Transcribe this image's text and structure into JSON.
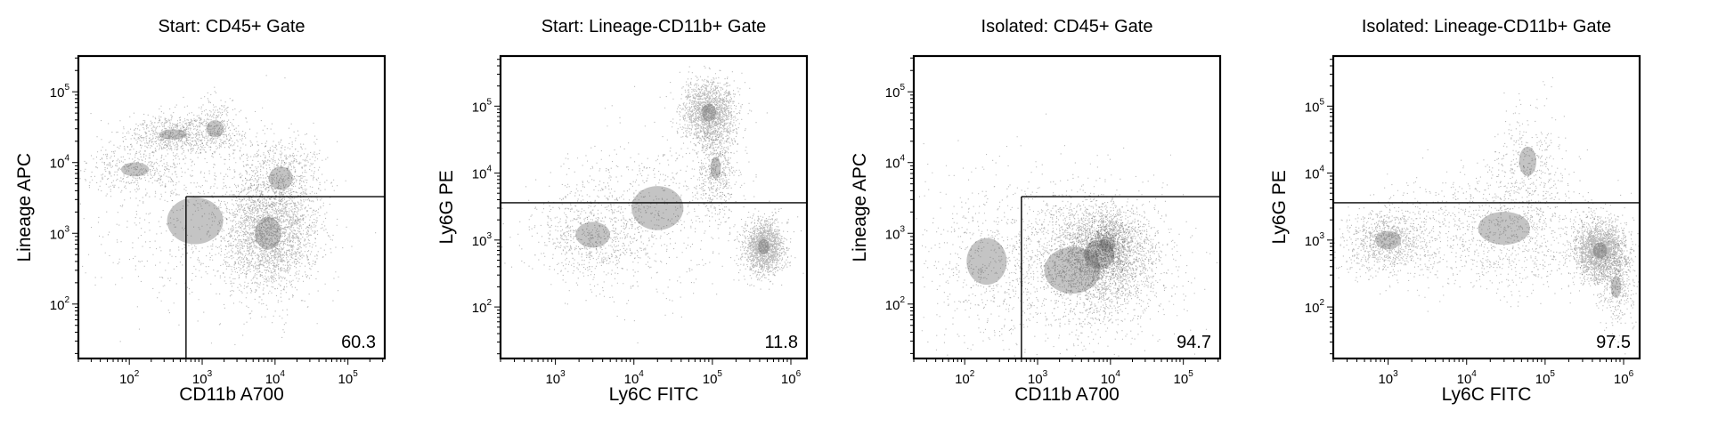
{
  "chart_data": [
    {
      "type": "scatter",
      "title": "Start: CD45+ Gate",
      "xlabel": "CD11b A700",
      "ylabel": "Lineage APC",
      "xscale": "log",
      "yscale": "log",
      "xlim": [
        20,
        320000
      ],
      "ylim": [
        17,
        320000
      ],
      "xticks": [
        {
          "value": 100,
          "base": "10",
          "exp": "2"
        },
        {
          "value": 1000,
          "base": "10",
          "exp": "3"
        },
        {
          "value": 10000,
          "base": "10",
          "exp": "4"
        },
        {
          "value": 100000,
          "base": "10",
          "exp": "5"
        }
      ],
      "yticks": [
        {
          "value": 100,
          "base": "10",
          "exp": "2"
        },
        {
          "value": 1000,
          "base": "10",
          "exp": "3"
        },
        {
          "value": 10000,
          "base": "10",
          "exp": "4"
        },
        {
          "value": 100000,
          "base": "10",
          "exp": "5"
        }
      ],
      "gate": {
        "shape": "quadrant",
        "x_min": 600,
        "y_max": 3300
      },
      "gate_percent": "60.3",
      "populations": [
        {
          "x": 8000,
          "y": 1000,
          "sx": 0.33,
          "sy": 0.42,
          "weight": 0.5
        },
        {
          "x": 12000,
          "y": 6000,
          "sx": 0.3,
          "sy": 0.3,
          "weight": 0.12
        },
        {
          "x": 400,
          "y": 25000,
          "sx": 0.35,
          "sy": 0.13,
          "weight": 0.13
        },
        {
          "x": 120,
          "y": 8000,
          "sx": 0.35,
          "sy": 0.18,
          "weight": 0.08
        },
        {
          "x": 1500,
          "y": 30000,
          "sx": 0.22,
          "sy": 0.22,
          "weight": 0.07
        },
        {
          "x": 800,
          "y": 1500,
          "sx": 0.7,
          "sy": 0.6,
          "weight": 0.1
        }
      ]
    },
    {
      "type": "scatter",
      "title": "Start: Lineage-CD11b+ Gate",
      "xlabel": "Ly6C FITC",
      "ylabel": "Ly6G PE",
      "xscale": "log",
      "yscale": "log",
      "xlim": [
        200,
        1600000
      ],
      "ylim": [
        17,
        560000
      ],
      "xticks": [
        {
          "value": 1000,
          "base": "10",
          "exp": "3"
        },
        {
          "value": 10000,
          "base": "10",
          "exp": "4"
        },
        {
          "value": 100000,
          "base": "10",
          "exp": "5"
        },
        {
          "value": 1000000,
          "base": "10",
          "exp": "6"
        }
      ],
      "yticks": [
        {
          "value": 100,
          "base": "10",
          "exp": "2"
        },
        {
          "value": 1000,
          "base": "10",
          "exp": "3"
        },
        {
          "value": 10000,
          "base": "10",
          "exp": "4"
        },
        {
          "value": 100000,
          "base": "10",
          "exp": "5"
        }
      ],
      "gate": {
        "shape": "horizontal",
        "y": 3600
      },
      "gate_percent": "11.8",
      "populations": [
        {
          "x": 90000,
          "y": 80000,
          "sx": 0.17,
          "sy": 0.24,
          "weight": 0.33
        },
        {
          "x": 110000,
          "y": 12000,
          "sx": 0.12,
          "sy": 0.3,
          "weight": 0.1
        },
        {
          "x": 450000,
          "y": 800,
          "sx": 0.13,
          "sy": 0.2,
          "weight": 0.3
        },
        {
          "x": 3000,
          "y": 1200,
          "sx": 0.4,
          "sy": 0.35,
          "weight": 0.15
        },
        {
          "x": 20000,
          "y": 3000,
          "sx": 0.6,
          "sy": 0.6,
          "weight": 0.12
        }
      ]
    },
    {
      "type": "scatter",
      "title": "Isolated: CD45+ Gate",
      "xlabel": "CD11b A700",
      "ylabel": "Lineage APC",
      "xscale": "log",
      "yscale": "log",
      "xlim": [
        20,
        320000
      ],
      "ylim": [
        17,
        320000
      ],
      "xticks": [
        {
          "value": 100,
          "base": "10",
          "exp": "2"
        },
        {
          "value": 1000,
          "base": "10",
          "exp": "3"
        },
        {
          "value": 10000,
          "base": "10",
          "exp": "4"
        },
        {
          "value": 100000,
          "base": "10",
          "exp": "5"
        }
      ],
      "yticks": [
        {
          "value": 100,
          "base": "10",
          "exp": "2"
        },
        {
          "value": 1000,
          "base": "10",
          "exp": "3"
        },
        {
          "value": 10000,
          "base": "10",
          "exp": "4"
        },
        {
          "value": 100000,
          "base": "10",
          "exp": "5"
        }
      ],
      "gate": {
        "shape": "quadrant",
        "x_min": 600,
        "y_max": 3300
      },
      "gate_percent": "94.7",
      "populations": [
        {
          "x": 7000,
          "y": 500,
          "sx": 0.38,
          "sy": 0.38,
          "weight": 0.55
        },
        {
          "x": 9000,
          "y": 700,
          "sx": 0.2,
          "sy": 0.2,
          "weight": 0.15
        },
        {
          "x": 3000,
          "y": 300,
          "sx": 0.7,
          "sy": 0.6,
          "weight": 0.2
        },
        {
          "x": 200,
          "y": 400,
          "sx": 0.5,
          "sy": 0.6,
          "weight": 0.1
        }
      ]
    },
    {
      "type": "scatter",
      "title": "Isolated: Lineage-CD11b+ Gate",
      "xlabel": "Ly6C FITC",
      "ylabel": "Ly6G PE",
      "xscale": "log",
      "yscale": "log",
      "xlim": [
        200,
        1600000
      ],
      "ylim": [
        17,
        560000
      ],
      "xticks": [
        {
          "value": 1000,
          "base": "10",
          "exp": "3"
        },
        {
          "value": 10000,
          "base": "10",
          "exp": "4"
        },
        {
          "value": 100000,
          "base": "10",
          "exp": "5"
        },
        {
          "value": 1000000,
          "base": "10",
          "exp": "6"
        }
      ],
      "yticks": [
        {
          "value": 100,
          "base": "10",
          "exp": "2"
        },
        {
          "value": 1000,
          "base": "10",
          "exp": "3"
        },
        {
          "value": 10000,
          "base": "10",
          "exp": "4"
        },
        {
          "value": 100000,
          "base": "10",
          "exp": "5"
        }
      ],
      "gate": {
        "shape": "horizontal",
        "y": 3600
      },
      "gate_percent": "97.5",
      "populations": [
        {
          "x": 500000,
          "y": 700,
          "sx": 0.16,
          "sy": 0.22,
          "weight": 0.45
        },
        {
          "x": 1000,
          "y": 1000,
          "sx": 0.3,
          "sy": 0.25,
          "weight": 0.2
        },
        {
          "x": 60000,
          "y": 15000,
          "sx": 0.2,
          "sy": 0.4,
          "weight": 0.06
        },
        {
          "x": 30000,
          "y": 1500,
          "sx": 0.6,
          "sy": 0.45,
          "weight": 0.22
        },
        {
          "x": 800000,
          "y": 200,
          "sx": 0.12,
          "sy": 0.3,
          "weight": 0.07
        }
      ]
    }
  ]
}
